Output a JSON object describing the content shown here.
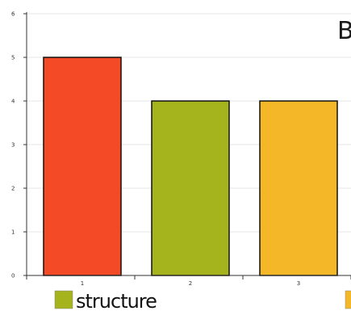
{
  "chart_data": {
    "type": "bar",
    "title": "B",
    "categories": [
      "1",
      "2",
      "3"
    ],
    "values": [
      5,
      4,
      4
    ],
    "bar_colors": [
      "#f44a25",
      "#a5b31d",
      "#f4b728"
    ],
    "ylim": [
      0,
      6
    ],
    "yticks": [
      "0",
      "1",
      "2",
      "3",
      "4",
      "5",
      "6"
    ],
    "grid": true,
    "legend": {
      "placement": "bottom",
      "entries": [
        {
          "label": "structure",
          "color": "#a5b31d"
        },
        {
          "label": "",
          "color": "#f4b728"
        }
      ]
    }
  }
}
